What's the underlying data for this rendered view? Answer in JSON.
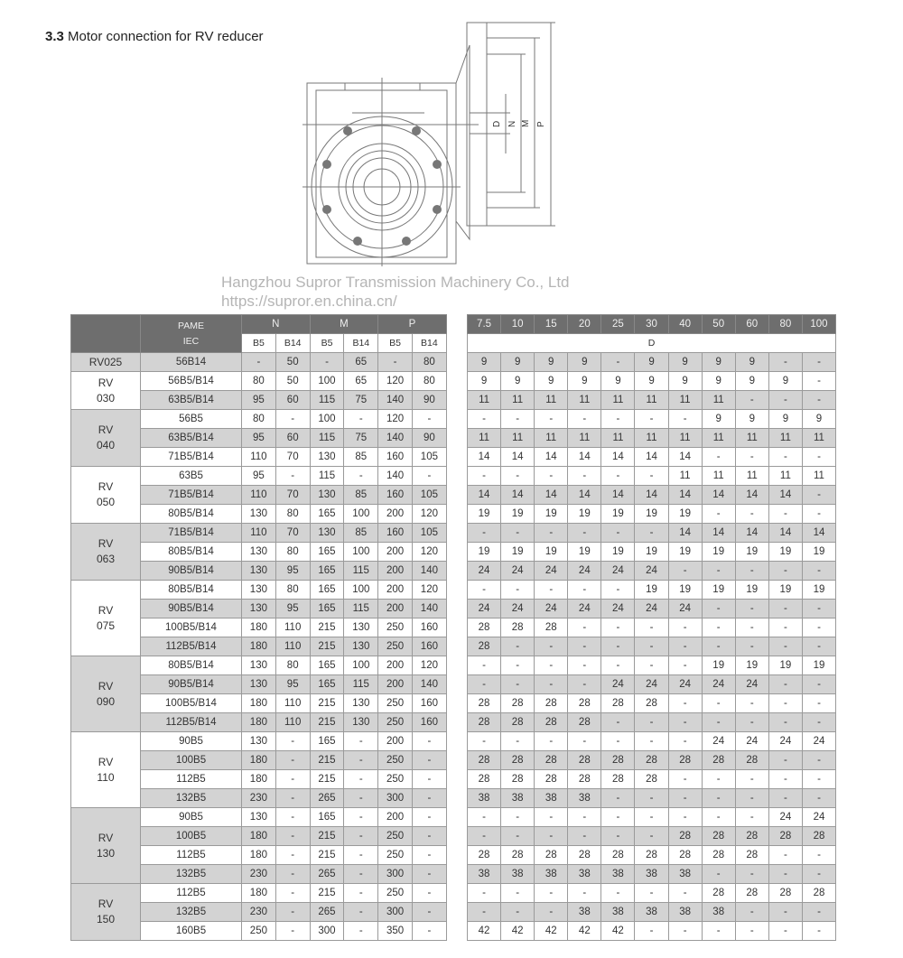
{
  "section": {
    "number": "3.3",
    "title": "Motor connection for RV reducer"
  },
  "drawing": {
    "labels": [
      "D",
      "N",
      "M",
      "P"
    ]
  },
  "watermark": {
    "line1": "Hangzhou Supror Transmission Machinery Co., Ltd",
    "line2": "https://supror.en.china.cn/"
  },
  "left_table": {
    "header": {
      "pame": "PAME",
      "iec": "IEC",
      "groups": [
        "N",
        "M",
        "P"
      ],
      "sub": [
        "B5",
        "B14",
        "B5",
        "B14",
        "B5",
        "B14"
      ]
    },
    "groups": [
      {
        "model": [
          "RV025"
        ],
        "rows": [
          [
            "56B14",
            "-",
            "50",
            "-",
            "65",
            "-",
            "80"
          ]
        ]
      },
      {
        "model": [
          "RV",
          "030"
        ],
        "rows": [
          [
            "56B5/B14",
            "80",
            "50",
            "100",
            "65",
            "120",
            "80"
          ],
          [
            "63B5/B14",
            "95",
            "60",
            "115",
            "75",
            "140",
            "90"
          ]
        ]
      },
      {
        "model": [
          "RV",
          "040"
        ],
        "rows": [
          [
            "56B5",
            "80",
            "-",
            "100",
            "-",
            "120",
            "-"
          ],
          [
            "63B5/B14",
            "95",
            "60",
            "115",
            "75",
            "140",
            "90"
          ],
          [
            "71B5/B14",
            "110",
            "70",
            "130",
            "85",
            "160",
            "105"
          ]
        ]
      },
      {
        "model": [
          "RV",
          "050"
        ],
        "rows": [
          [
            "63B5",
            "95",
            "-",
            "115",
            "-",
            "140",
            "-"
          ],
          [
            "71B5/B14",
            "110",
            "70",
            "130",
            "85",
            "160",
            "105"
          ],
          [
            "80B5/B14",
            "130",
            "80",
            "165",
            "100",
            "200",
            "120"
          ]
        ]
      },
      {
        "model": [
          "RV",
          "063"
        ],
        "rows": [
          [
            "71B5/B14",
            "110",
            "70",
            "130",
            "85",
            "160",
            "105"
          ],
          [
            "80B5/B14",
            "130",
            "80",
            "165",
            "100",
            "200",
            "120"
          ],
          [
            "90B5/B14",
            "130",
            "95",
            "165",
            "115",
            "200",
            "140"
          ]
        ]
      },
      {
        "model": [
          "RV",
          "075"
        ],
        "rows": [
          [
            "80B5/B14",
            "130",
            "80",
            "165",
            "100",
            "200",
            "120"
          ],
          [
            "90B5/B14",
            "130",
            "95",
            "165",
            "115",
            "200",
            "140"
          ],
          [
            "100B5/B14",
            "180",
            "110",
            "215",
            "130",
            "250",
            "160"
          ],
          [
            "112B5/B14",
            "180",
            "110",
            "215",
            "130",
            "250",
            "160"
          ]
        ]
      },
      {
        "model": [
          "RV",
          "090"
        ],
        "rows": [
          [
            "80B5/B14",
            "130",
            "80",
            "165",
            "100",
            "200",
            "120"
          ],
          [
            "90B5/B14",
            "130",
            "95",
            "165",
            "115",
            "200",
            "140"
          ],
          [
            "100B5/B14",
            "180",
            "110",
            "215",
            "130",
            "250",
            "160"
          ],
          [
            "112B5/B14",
            "180",
            "110",
            "215",
            "130",
            "250",
            "160"
          ]
        ]
      },
      {
        "model": [
          "RV",
          "110"
        ],
        "rows": [
          [
            "90B5",
            "130",
            "-",
            "165",
            "-",
            "200",
            "-"
          ],
          [
            "100B5",
            "180",
            "-",
            "215",
            "-",
            "250",
            "-"
          ],
          [
            "112B5",
            "180",
            "-",
            "215",
            "-",
            "250",
            "-"
          ],
          [
            "132B5",
            "230",
            "-",
            "265",
            "-",
            "300",
            "-"
          ]
        ]
      },
      {
        "model": [
          "RV",
          "130"
        ],
        "rows": [
          [
            "90B5",
            "130",
            "-",
            "165",
            "-",
            "200",
            "-"
          ],
          [
            "100B5",
            "180",
            "-",
            "215",
            "-",
            "250",
            "-"
          ],
          [
            "112B5",
            "180",
            "-",
            "215",
            "-",
            "250",
            "-"
          ],
          [
            "132B5",
            "230",
            "-",
            "265",
            "-",
            "300",
            "-"
          ]
        ]
      },
      {
        "model": [
          "RV",
          "150"
        ],
        "rows": [
          [
            "112B5",
            "180",
            "-",
            "215",
            "-",
            "250",
            "-"
          ],
          [
            "132B5",
            "230",
            "-",
            "265",
            "-",
            "300",
            "-"
          ],
          [
            "160B5",
            "250",
            "-",
            "300",
            "-",
            "350",
            "-"
          ]
        ]
      }
    ]
  },
  "right_table": {
    "ratios": [
      "7.5",
      "10",
      "15",
      "20",
      "25",
      "30",
      "40",
      "50",
      "60",
      "80",
      "100"
    ],
    "sub_label": "D",
    "rows": [
      [
        "9",
        "9",
        "9",
        "9",
        "-",
        "9",
        "9",
        "9",
        "9",
        "-",
        "-"
      ],
      [
        "9",
        "9",
        "9",
        "9",
        "9",
        "9",
        "9",
        "9",
        "9",
        "9",
        "-"
      ],
      [
        "11",
        "11",
        "11",
        "11",
        "11",
        "11",
        "11",
        "11",
        "-",
        "-",
        "-"
      ],
      [
        "-",
        "-",
        "-",
        "-",
        "-",
        "-",
        "-",
        "9",
        "9",
        "9",
        "9"
      ],
      [
        "11",
        "11",
        "11",
        "11",
        "11",
        "11",
        "11",
        "11",
        "11",
        "11",
        "11"
      ],
      [
        "14",
        "14",
        "14",
        "14",
        "14",
        "14",
        "14",
        "-",
        "-",
        "-",
        "-"
      ],
      [
        "-",
        "-",
        "-",
        "-",
        "-",
        "-",
        "11",
        "11",
        "11",
        "11",
        "11"
      ],
      [
        "14",
        "14",
        "14",
        "14",
        "14",
        "14",
        "14",
        "14",
        "14",
        "14",
        "-"
      ],
      [
        "19",
        "19",
        "19",
        "19",
        "19",
        "19",
        "19",
        "-",
        "-",
        "-",
        "-"
      ],
      [
        "-",
        "-",
        "-",
        "-",
        "-",
        "-",
        "14",
        "14",
        "14",
        "14",
        "14"
      ],
      [
        "19",
        "19",
        "19",
        "19",
        "19",
        "19",
        "19",
        "19",
        "19",
        "19",
        "19"
      ],
      [
        "24",
        "24",
        "24",
        "24",
        "24",
        "24",
        "-",
        "-",
        "-",
        "-",
        "-"
      ],
      [
        "-",
        "-",
        "-",
        "-",
        "-",
        "19",
        "19",
        "19",
        "19",
        "19",
        "19"
      ],
      [
        "24",
        "24",
        "24",
        "24",
        "24",
        "24",
        "24",
        "-",
        "-",
        "-",
        "-"
      ],
      [
        "28",
        "28",
        "28",
        "-",
        "-",
        "-",
        "-",
        "-",
        "-",
        "-",
        "-"
      ],
      [
        "28",
        "-",
        "-",
        "-",
        "-",
        "-",
        "-",
        "-",
        "-",
        "-",
        "-"
      ],
      [
        "-",
        "-",
        "-",
        "-",
        "-",
        "-",
        "-",
        "19",
        "19",
        "19",
        "19"
      ],
      [
        "-",
        "-",
        "-",
        "-",
        "24",
        "24",
        "24",
        "24",
        "24",
        "-",
        "-"
      ],
      [
        "28",
        "28",
        "28",
        "28",
        "28",
        "28",
        "-",
        "-",
        "-",
        "-",
        "-"
      ],
      [
        "28",
        "28",
        "28",
        "28",
        "-",
        "-",
        "-",
        "-",
        "-",
        "-",
        "-"
      ],
      [
        "-",
        "-",
        "-",
        "-",
        "-",
        "-",
        "-",
        "24",
        "24",
        "24",
        "24"
      ],
      [
        "28",
        "28",
        "28",
        "28",
        "28",
        "28",
        "28",
        "28",
        "28",
        "-",
        "-"
      ],
      [
        "28",
        "28",
        "28",
        "28",
        "28",
        "28",
        "-",
        "-",
        "-",
        "-",
        "-"
      ],
      [
        "38",
        "38",
        "38",
        "38",
        "-",
        "-",
        "-",
        "-",
        "-",
        "-",
        "-"
      ],
      [
        "-",
        "-",
        "-",
        "-",
        "-",
        "-",
        "-",
        "-",
        "-",
        "24",
        "24"
      ],
      [
        "-",
        "-",
        "-",
        "-",
        "-",
        "-",
        "28",
        "28",
        "28",
        "28",
        "28"
      ],
      [
        "28",
        "28",
        "28",
        "28",
        "28",
        "28",
        "28",
        "28",
        "28",
        "-",
        "-"
      ],
      [
        "38",
        "38",
        "38",
        "38",
        "38",
        "38",
        "38",
        "-",
        "-",
        "-",
        "-"
      ],
      [
        "-",
        "-",
        "-",
        "-",
        "-",
        "-",
        "-",
        "28",
        "28",
        "28",
        "28"
      ],
      [
        "-",
        "-",
        "-",
        "38",
        "38",
        "38",
        "38",
        "38",
        "-",
        "-",
        "-"
      ],
      [
        "42",
        "42",
        "42",
        "42",
        "42",
        "-",
        "-",
        "-",
        "-",
        "-",
        "-"
      ]
    ]
  }
}
